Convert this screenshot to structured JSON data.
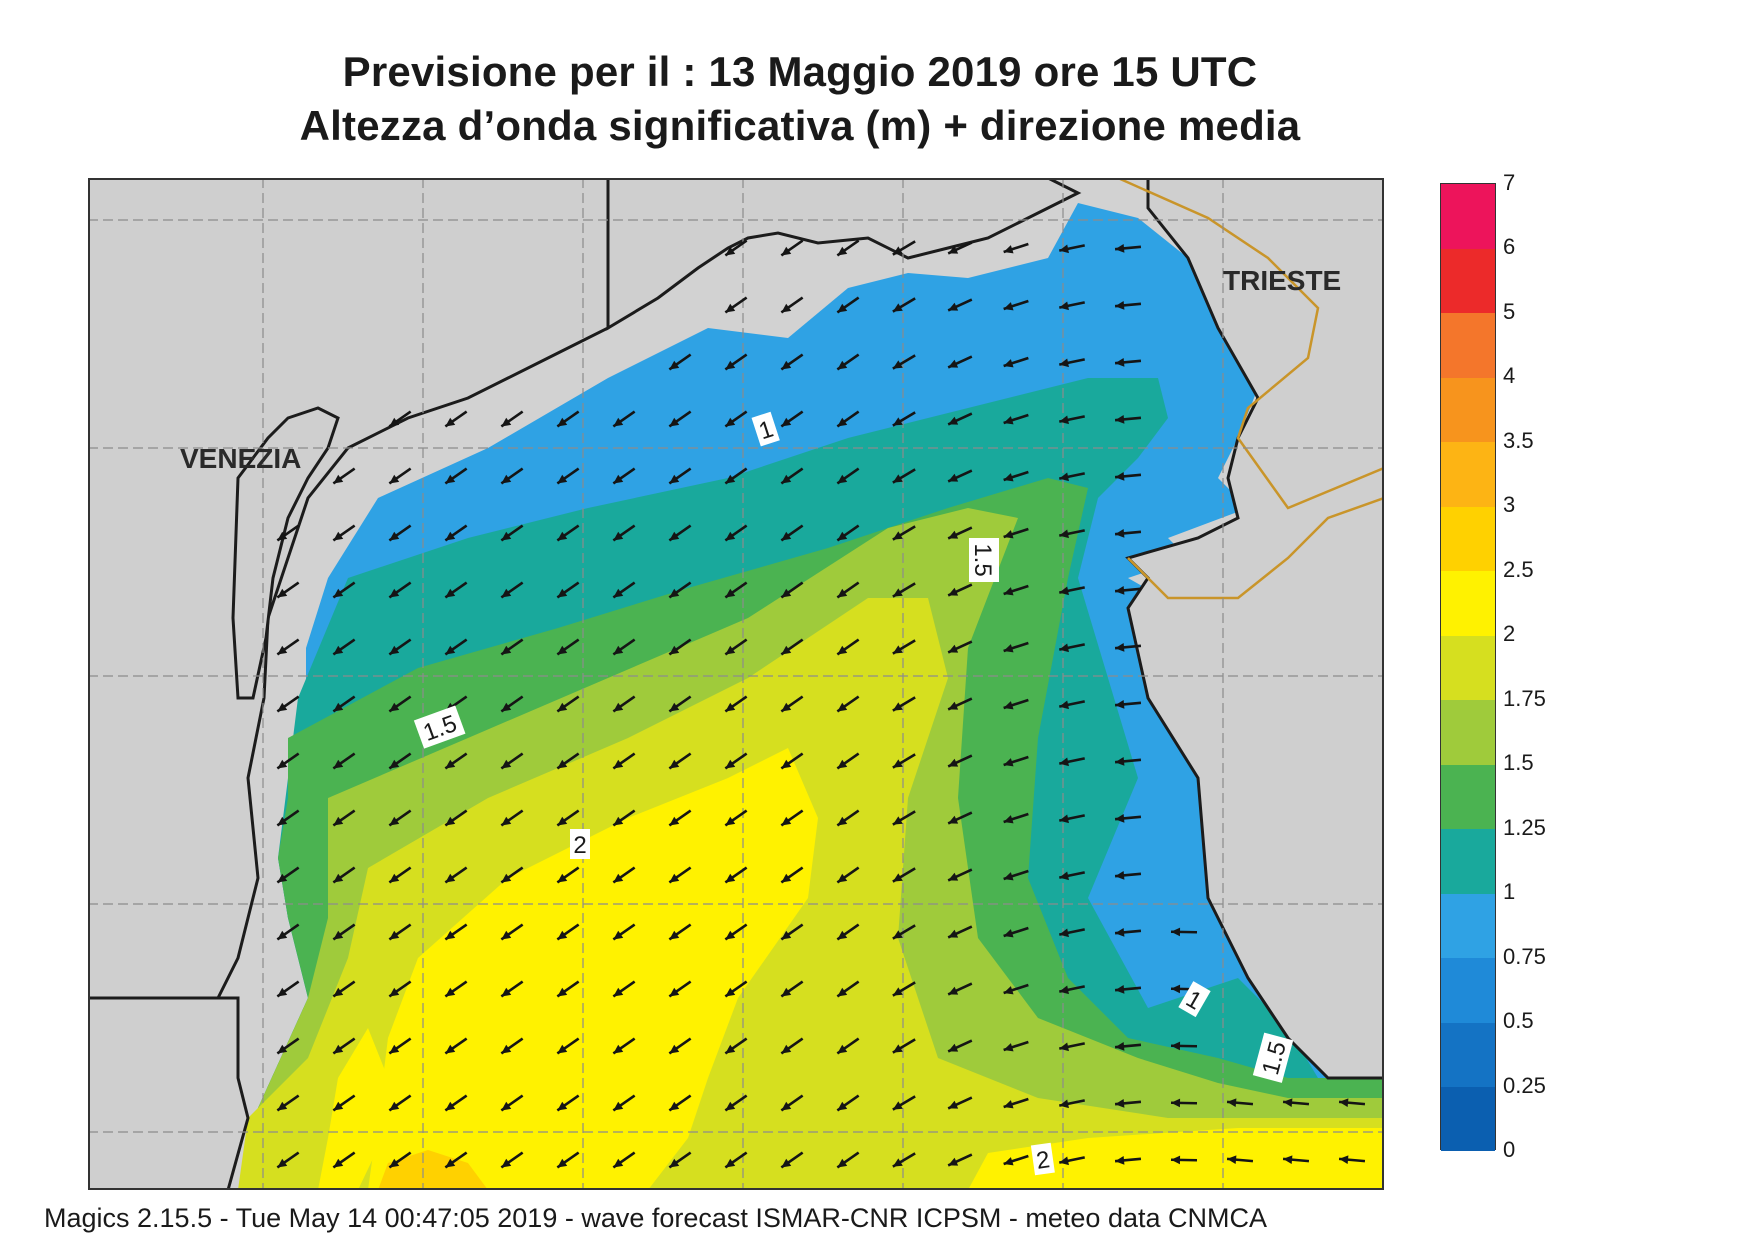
{
  "title": {
    "line1": "Previsione per il  :  13   Maggio  2019   ore 15 UTC",
    "line2": "Altezza d’onda significativa (m) + direzione media"
  },
  "map": {
    "cities": [
      "VENEZIA",
      "TRIESTE"
    ],
    "contour_labels": [
      "1",
      "1.5",
      "1.5",
      "2",
      "1",
      "1.5",
      "2"
    ],
    "wave_direction": "from NE (arrows point south-west)",
    "colors": {
      "land": "#cfcfcf",
      "sea_outside": "#d2d2d2",
      "coastline": "#1c1c1c",
      "border": "#c9952a",
      "grid": "#8c8c8c"
    }
  },
  "colorbar": {
    "unit": "m",
    "levels": [
      "0",
      "0.25",
      "0.5",
      "0.75",
      "1",
      "1.25",
      "1.5",
      "1.75",
      "2",
      "2.5",
      "3",
      "3.5",
      "4",
      "5",
      "6",
      "7"
    ],
    "colors": [
      "#0b5fb0",
      "#1473c4",
      "#1f8ad8",
      "#2fa2e4",
      "#19a99c",
      "#4bb351",
      "#9fcb3b",
      "#d6df1f",
      "#fff200",
      "#ffd100",
      "#fdb414",
      "#f7941d",
      "#f4762b",
      "#ec2a2a",
      "#ed145b"
    ]
  },
  "footer": "Magics 2.15.5 - Tue May 14 00:47:05 2019 - wave forecast  ISMAR-CNR  ICPSM - meteo data   CNMCA"
}
